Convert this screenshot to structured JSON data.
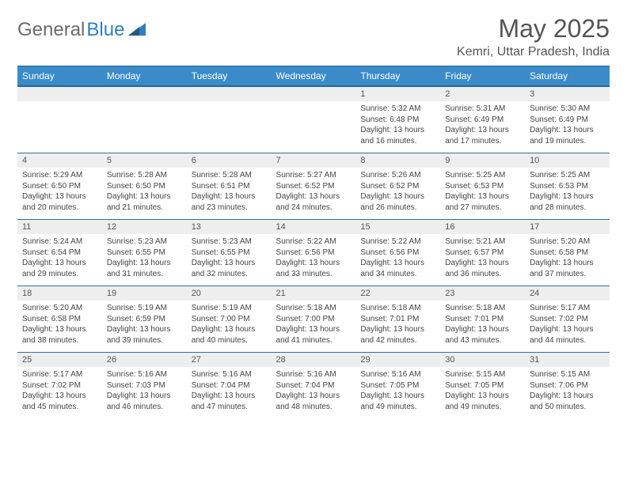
{
  "logo": {
    "textGray": "General",
    "textBlue": "Blue"
  },
  "title": "May 2025",
  "location": "Kemri, Uttar Pradesh, India",
  "colors": {
    "headerBg": "#3b8bc9",
    "headerBorder": "#1f5f8f",
    "rowBorder": "#2a6fa8",
    "dayNumBg": "#eeeeee",
    "text": "#444444",
    "titleColor": "#555555"
  },
  "daysOfWeek": [
    "Sunday",
    "Monday",
    "Tuesday",
    "Wednesday",
    "Thursday",
    "Friday",
    "Saturday"
  ],
  "startOffset": 4,
  "cells": [
    {
      "n": "1",
      "sr": "5:32 AM",
      "ss": "6:48 PM",
      "dl": "13 hours and 16 minutes."
    },
    {
      "n": "2",
      "sr": "5:31 AM",
      "ss": "6:49 PM",
      "dl": "13 hours and 17 minutes."
    },
    {
      "n": "3",
      "sr": "5:30 AM",
      "ss": "6:49 PM",
      "dl": "13 hours and 19 minutes."
    },
    {
      "n": "4",
      "sr": "5:29 AM",
      "ss": "6:50 PM",
      "dl": "13 hours and 20 minutes."
    },
    {
      "n": "5",
      "sr": "5:28 AM",
      "ss": "6:50 PM",
      "dl": "13 hours and 21 minutes."
    },
    {
      "n": "6",
      "sr": "5:28 AM",
      "ss": "6:51 PM",
      "dl": "13 hours and 23 minutes."
    },
    {
      "n": "7",
      "sr": "5:27 AM",
      "ss": "6:52 PM",
      "dl": "13 hours and 24 minutes."
    },
    {
      "n": "8",
      "sr": "5:26 AM",
      "ss": "6:52 PM",
      "dl": "13 hours and 26 minutes."
    },
    {
      "n": "9",
      "sr": "5:25 AM",
      "ss": "6:53 PM",
      "dl": "13 hours and 27 minutes."
    },
    {
      "n": "10",
      "sr": "5:25 AM",
      "ss": "6:53 PM",
      "dl": "13 hours and 28 minutes."
    },
    {
      "n": "11",
      "sr": "5:24 AM",
      "ss": "6:54 PM",
      "dl": "13 hours and 29 minutes."
    },
    {
      "n": "12",
      "sr": "5:23 AM",
      "ss": "6:55 PM",
      "dl": "13 hours and 31 minutes."
    },
    {
      "n": "13",
      "sr": "5:23 AM",
      "ss": "6:55 PM",
      "dl": "13 hours and 32 minutes."
    },
    {
      "n": "14",
      "sr": "5:22 AM",
      "ss": "6:56 PM",
      "dl": "13 hours and 33 minutes."
    },
    {
      "n": "15",
      "sr": "5:22 AM",
      "ss": "6:56 PM",
      "dl": "13 hours and 34 minutes."
    },
    {
      "n": "16",
      "sr": "5:21 AM",
      "ss": "6:57 PM",
      "dl": "13 hours and 36 minutes."
    },
    {
      "n": "17",
      "sr": "5:20 AM",
      "ss": "6:58 PM",
      "dl": "13 hours and 37 minutes."
    },
    {
      "n": "18",
      "sr": "5:20 AM",
      "ss": "6:58 PM",
      "dl": "13 hours and 38 minutes."
    },
    {
      "n": "19",
      "sr": "5:19 AM",
      "ss": "6:59 PM",
      "dl": "13 hours and 39 minutes."
    },
    {
      "n": "20",
      "sr": "5:19 AM",
      "ss": "7:00 PM",
      "dl": "13 hours and 40 minutes."
    },
    {
      "n": "21",
      "sr": "5:18 AM",
      "ss": "7:00 PM",
      "dl": "13 hours and 41 minutes."
    },
    {
      "n": "22",
      "sr": "5:18 AM",
      "ss": "7:01 PM",
      "dl": "13 hours and 42 minutes."
    },
    {
      "n": "23",
      "sr": "5:18 AM",
      "ss": "7:01 PM",
      "dl": "13 hours and 43 minutes."
    },
    {
      "n": "24",
      "sr": "5:17 AM",
      "ss": "7:02 PM",
      "dl": "13 hours and 44 minutes."
    },
    {
      "n": "25",
      "sr": "5:17 AM",
      "ss": "7:02 PM",
      "dl": "13 hours and 45 minutes."
    },
    {
      "n": "26",
      "sr": "5:16 AM",
      "ss": "7:03 PM",
      "dl": "13 hours and 46 minutes."
    },
    {
      "n": "27",
      "sr": "5:16 AM",
      "ss": "7:04 PM",
      "dl": "13 hours and 47 minutes."
    },
    {
      "n": "28",
      "sr": "5:16 AM",
      "ss": "7:04 PM",
      "dl": "13 hours and 48 minutes."
    },
    {
      "n": "29",
      "sr": "5:16 AM",
      "ss": "7:05 PM",
      "dl": "13 hours and 49 minutes."
    },
    {
      "n": "30",
      "sr": "5:15 AM",
      "ss": "7:05 PM",
      "dl": "13 hours and 49 minutes."
    },
    {
      "n": "31",
      "sr": "5:15 AM",
      "ss": "7:06 PM",
      "dl": "13 hours and 50 minutes."
    }
  ],
  "labels": {
    "sunrise": "Sunrise:",
    "sunset": "Sunset:",
    "daylight": "Daylight:"
  }
}
